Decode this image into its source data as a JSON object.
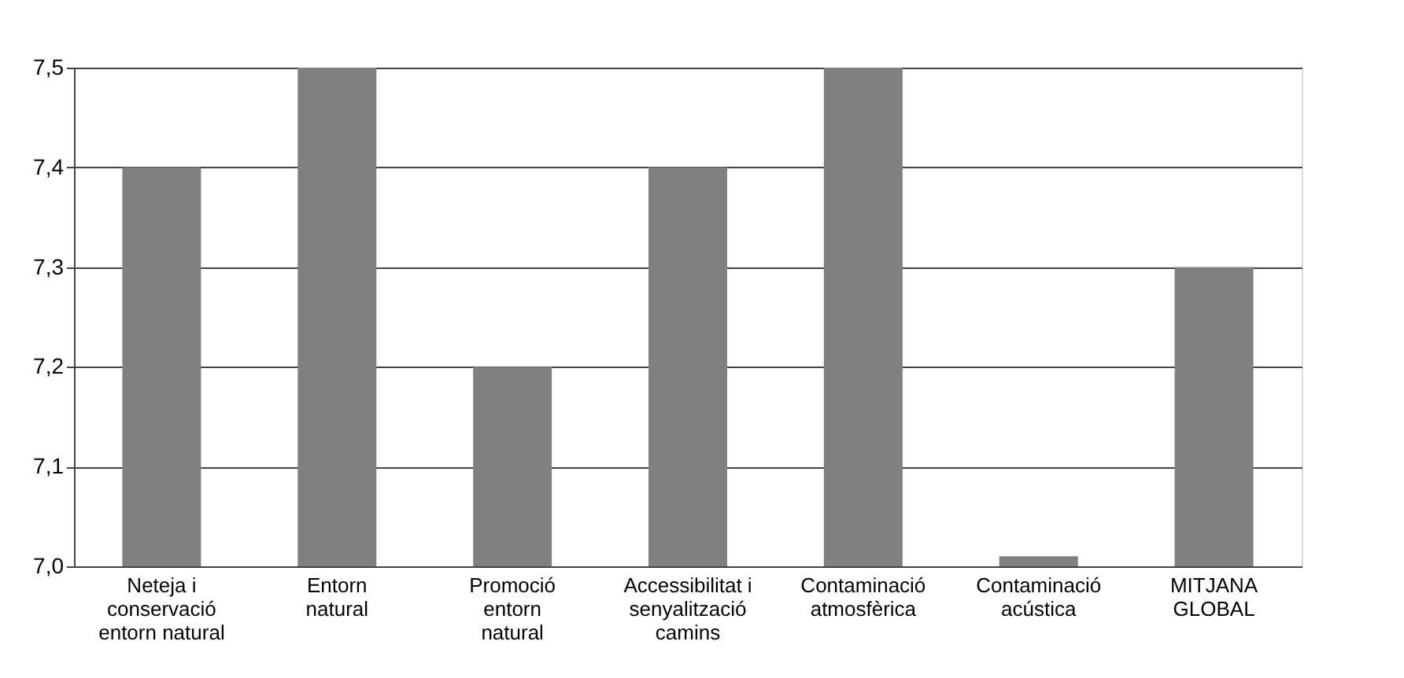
{
  "chart_data": {
    "type": "bar",
    "categories": [
      "Neteja i\nconservació\nentorn natural",
      "Entorn\nnatural",
      "Promoció\nentorn\nnatural",
      "Accessibilitat i\nsenyalització\ncamins",
      "Contaminació\natmosfèrica",
      "Contaminació\nacústica",
      "MITJANA\nGLOBAL"
    ],
    "values": [
      7.4,
      7.5,
      7.2,
      7.4,
      7.5,
      7.01,
      7.3
    ],
    "color": "#808080",
    "ylim": [
      7.0,
      7.5
    ],
    "yticks": [
      {
        "value": 7.0,
        "label": "7,0"
      },
      {
        "value": 7.1,
        "label": "7,1"
      },
      {
        "value": 7.2,
        "label": "7,2"
      },
      {
        "value": 7.3,
        "label": "7,3"
      },
      {
        "value": 7.4,
        "label": "7,4"
      },
      {
        "value": 7.5,
        "label": "7,5"
      }
    ],
    "grid": "y"
  }
}
